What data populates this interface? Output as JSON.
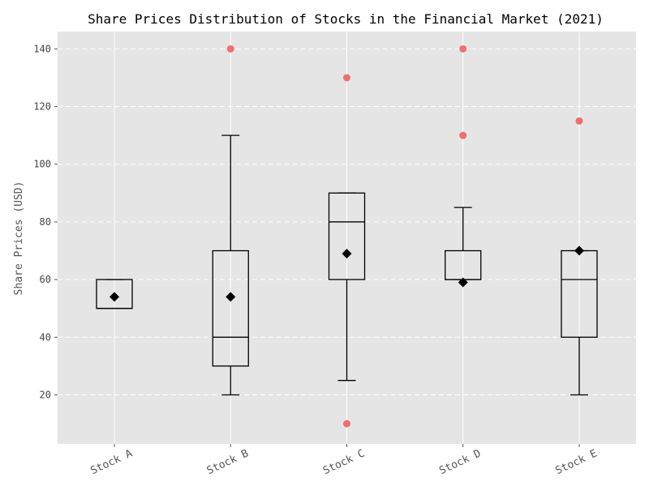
{
  "chart_data": {
    "type": "box",
    "title": "Share Prices Distribution of Stocks in the Financial Market (2021)",
    "xlabel": "",
    "ylabel": "Share Prices (USD)",
    "ylim": [
      3,
      146
    ],
    "yticks": [
      20,
      40,
      60,
      80,
      100,
      120,
      140
    ],
    "grid": true,
    "categories": [
      "Stock A",
      "Stock B",
      "Stock C",
      "Stock D",
      "Stock E"
    ],
    "boxes": [
      {
        "min": 50,
        "q1": 50,
        "median": 50,
        "q3": 60,
        "max": 60,
        "mean": 54,
        "outliers": []
      },
      {
        "min": 20,
        "q1": 30,
        "median": 40,
        "q3": 70,
        "max": 110,
        "mean": 54,
        "outliers": [
          140
        ]
      },
      {
        "min": 25,
        "q1": 60,
        "median": 80,
        "q3": 90,
        "max": 90,
        "mean": 69,
        "outliers": [
          130,
          10
        ]
      },
      {
        "min": 60,
        "q1": 60,
        "median": 60,
        "q3": 70,
        "max": 85,
        "mean": 59,
        "outliers": [
          140,
          110
        ]
      },
      {
        "min": 20,
        "q1": 40,
        "median": 60,
        "q3": 70,
        "max": 70,
        "mean": 70,
        "outliers": [
          115
        ]
      }
    ],
    "colors": {
      "plot_background": "#e5e5e5",
      "grid": "#ffffff",
      "box": "#000000",
      "mean_marker": "#000000",
      "outlier": "#f06060"
    }
  }
}
